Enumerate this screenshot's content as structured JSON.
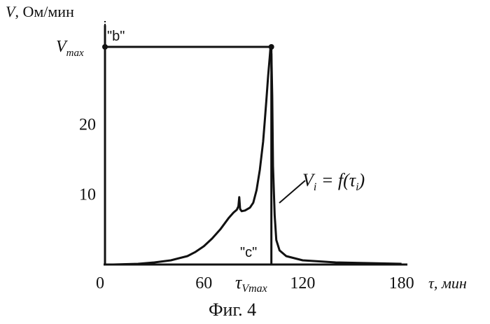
{
  "chart_data": {
    "type": "line",
    "ylabel_main": "V",
    "ylabel_units": ", Ом/мин",
    "xlabel_main": "τ",
    "xlabel_units": ", мин",
    "caption": "Фиг. 4",
    "xlim": [
      0,
      184
    ],
    "ylim": [
      0,
      31
    ],
    "x_ticks": [
      {
        "value": 0,
        "label": "0"
      },
      {
        "value": 60,
        "label": "60"
      },
      {
        "value": 120,
        "label": "120"
      },
      {
        "value": 180,
        "label": "180"
      }
    ],
    "y_ticks": [
      {
        "value": 10,
        "label": "10"
      },
      {
        "value": 20,
        "label": "20"
      }
    ],
    "vmax_label": "V",
    "vmax_sub": "max",
    "tau_vmax_label": "τ",
    "tau_vmax_sub": "Vmax",
    "tau_vmax_value": 101,
    "vmax_value": 31,
    "marker_b": "\"b\"",
    "marker_c": "\"c\"",
    "function_label": {
      "lhs": "V",
      "lhs_sub": "i",
      "eq": " = f(τ",
      "arg_sub": "i",
      "close": ")"
    },
    "series": [
      {
        "x": [
          5,
          20,
          30,
          40,
          50,
          55,
          60,
          65,
          70,
          75,
          78,
          80,
          81,
          81.5,
          82,
          83,
          85,
          88,
          90,
          92,
          94,
          96,
          97,
          98,
          99,
          100,
          100.5,
          101,
          101.5,
          102,
          103,
          104,
          106,
          110,
          120,
          140,
          160,
          180
        ],
        "y": [
          0,
          0.1,
          0.3,
          0.6,
          1.2,
          1.8,
          2.6,
          3.7,
          5.0,
          6.6,
          7.4,
          7.8,
          8.3,
          9.6,
          7.9,
          7.6,
          7.7,
          8.1,
          8.8,
          10.6,
          13.5,
          17.5,
          20.5,
          23.5,
          26.8,
          29.5,
          31,
          30,
          24,
          14,
          7,
          3.5,
          2.0,
          1.2,
          0.6,
          0.3,
          0.2,
          0.1
        ]
      }
    ]
  }
}
